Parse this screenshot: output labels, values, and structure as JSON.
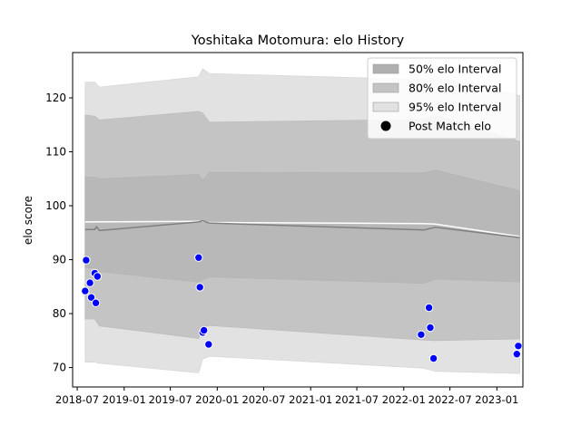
{
  "chart_data": {
    "type": "line",
    "title": "Yoshitaka Motomura: elo History",
    "xlabel": "",
    "ylabel": "elo score",
    "xlim": [
      "2018-06-13",
      "2023-04-13"
    ],
    "ylim": [
      66.4,
      128.4
    ],
    "x_ticks": [
      "2018-07",
      "2019-01",
      "2019-07",
      "2020-01",
      "2020-07",
      "2021-01",
      "2021-07",
      "2022-01",
      "2022-07",
      "2023-01"
    ],
    "y_ticks": [
      70,
      80,
      90,
      100,
      110,
      120
    ],
    "legend_position": "top-right",
    "grid": false,
    "legend": [
      {
        "label": "50% elo Interval",
        "color": "#b0b0b0",
        "kind": "patch"
      },
      {
        "label": "80% elo Interval",
        "color": "#c4c4c4",
        "kind": "patch"
      },
      {
        "label": "95% elo Interval",
        "color": "#e2e2e2",
        "kind": "patch"
      },
      {
        "label": "Post Match elo",
        "color": "#000000",
        "kind": "marker"
      }
    ],
    "bands": {
      "x": [
        "2018-08-01",
        "2018-09-08",
        "2018-09-26",
        "2019-10-20",
        "2019-11-05",
        "2019-12-01",
        "2022-03-20",
        "2022-05-05",
        "2023-04-01"
      ],
      "b95_upper": [
        122.9,
        122.9,
        122.0,
        123.9,
        125.4,
        124.5,
        123.4,
        123.9,
        120.4
      ],
      "b95_lower": [
        71.0,
        71.0,
        70.8,
        69.0,
        71.6,
        72.1,
        69.9,
        69.3,
        68.9
      ],
      "b80_upper": [
        116.8,
        116.6,
        115.9,
        117.5,
        117.2,
        115.5,
        116.0,
        116.8,
        111.9
      ],
      "b80_lower": [
        79.0,
        79.0,
        77.7,
        75.4,
        77.5,
        77.8,
        75.1,
        75.0,
        75.3
      ],
      "b50_upper": [
        105.3,
        105.3,
        105.0,
        105.8,
        104.7,
        106.2,
        106.1,
        106.6,
        102.8
      ],
      "b50_lower": [
        88.5,
        88.5,
        87.8,
        85.8,
        86.2,
        86.8,
        85.6,
        86.4,
        85.9
      ],
      "color_95": "#e2e2e2",
      "color_80": "#c4c4c4",
      "color_50": "#b0b0b0"
    },
    "series": [
      {
        "kind": "line",
        "color": "#ffffff",
        "x": [
          "2018-08-01",
          "2019-10-20",
          "2019-11-05",
          "2019-12-01",
          "2022-03-20",
          "2022-05-05",
          "2023-04-01"
        ],
        "y": [
          97.0,
          97.1,
          97.1,
          96.9,
          96.7,
          96.6,
          94.3
        ]
      },
      {
        "kind": "line",
        "color": "#808080",
        "x": [
          "2018-08-01",
          "2018-09-08",
          "2018-09-15",
          "2018-09-26",
          "2019-10-20",
          "2019-11-05",
          "2019-12-01",
          "2022-03-20",
          "2022-05-05",
          "2023-04-01"
        ],
        "y": [
          95.6,
          95.6,
          96.1,
          95.4,
          97.0,
          97.2,
          96.8,
          95.5,
          96.0,
          94.1
        ]
      },
      {
        "name": "Post Match elo",
        "kind": "scatter",
        "color": "#0000ff",
        "edge": "#ffffff",
        "x": [
          "2018-08-01",
          "2018-08-05",
          "2018-08-20",
          "2018-08-25",
          "2018-09-08",
          "2018-09-12",
          "2018-09-18",
          "2019-10-20",
          "2019-10-25",
          "2019-11-05",
          "2019-11-10",
          "2019-11-28",
          "2022-03-10",
          "2022-04-10",
          "2022-04-15",
          "2022-04-28",
          "2023-03-20",
          "2023-03-26"
        ],
        "y": [
          84.2,
          89.9,
          85.7,
          83.0,
          87.5,
          82.0,
          86.9,
          90.4,
          84.9,
          76.5,
          76.9,
          74.3,
          76.1,
          81.1,
          77.4,
          71.7,
          72.5,
          74.0
        ]
      }
    ]
  }
}
